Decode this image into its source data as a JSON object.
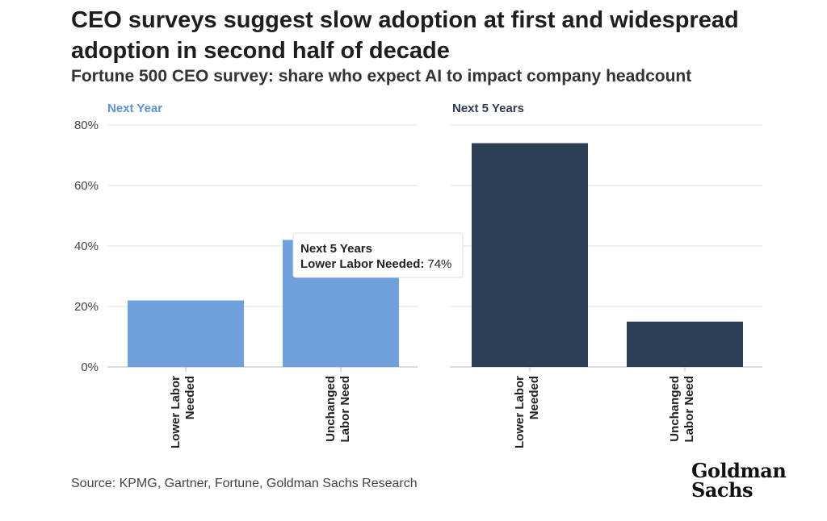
{
  "title": "CEO surveys suggest slow adoption at first and widespread adoption in second half of decade",
  "subtitle": "Fortune 500 CEO survey: share who expect AI to impact company headcount",
  "source": "Source: KPMG, Gartner, Fortune, Goldman Sachs Research",
  "logo": {
    "line1": "Goldman",
    "line2": "Sachs"
  },
  "tooltip": {
    "title": "Next 5 Years",
    "label": "Lower Labor Needed:",
    "value": "74%"
  },
  "chart_data": [
    {
      "type": "bar",
      "title": "Next Year",
      "title_color": "#5b93d0",
      "bar_color": "#6fa0dc",
      "categories": [
        [
          "Lower Labor",
          "Needed"
        ],
        [
          "Unchanged",
          "Labor Need"
        ]
      ],
      "values": [
        22,
        42
      ],
      "ylim": [
        0,
        80
      ],
      "yticks": [
        "0%",
        "20%",
        "40%",
        "60%",
        "80%"
      ],
      "grid": true
    },
    {
      "type": "bar",
      "title": "Next 5 Years",
      "title_color": "#2e3d52",
      "bar_color": "#2e3f58",
      "categories": [
        [
          "Lower Labor",
          "Needed"
        ],
        [
          "Unchanged",
          "Labor Need"
        ]
      ],
      "values": [
        74,
        15
      ],
      "ylim": [
        0,
        80
      ],
      "grid": true
    }
  ]
}
